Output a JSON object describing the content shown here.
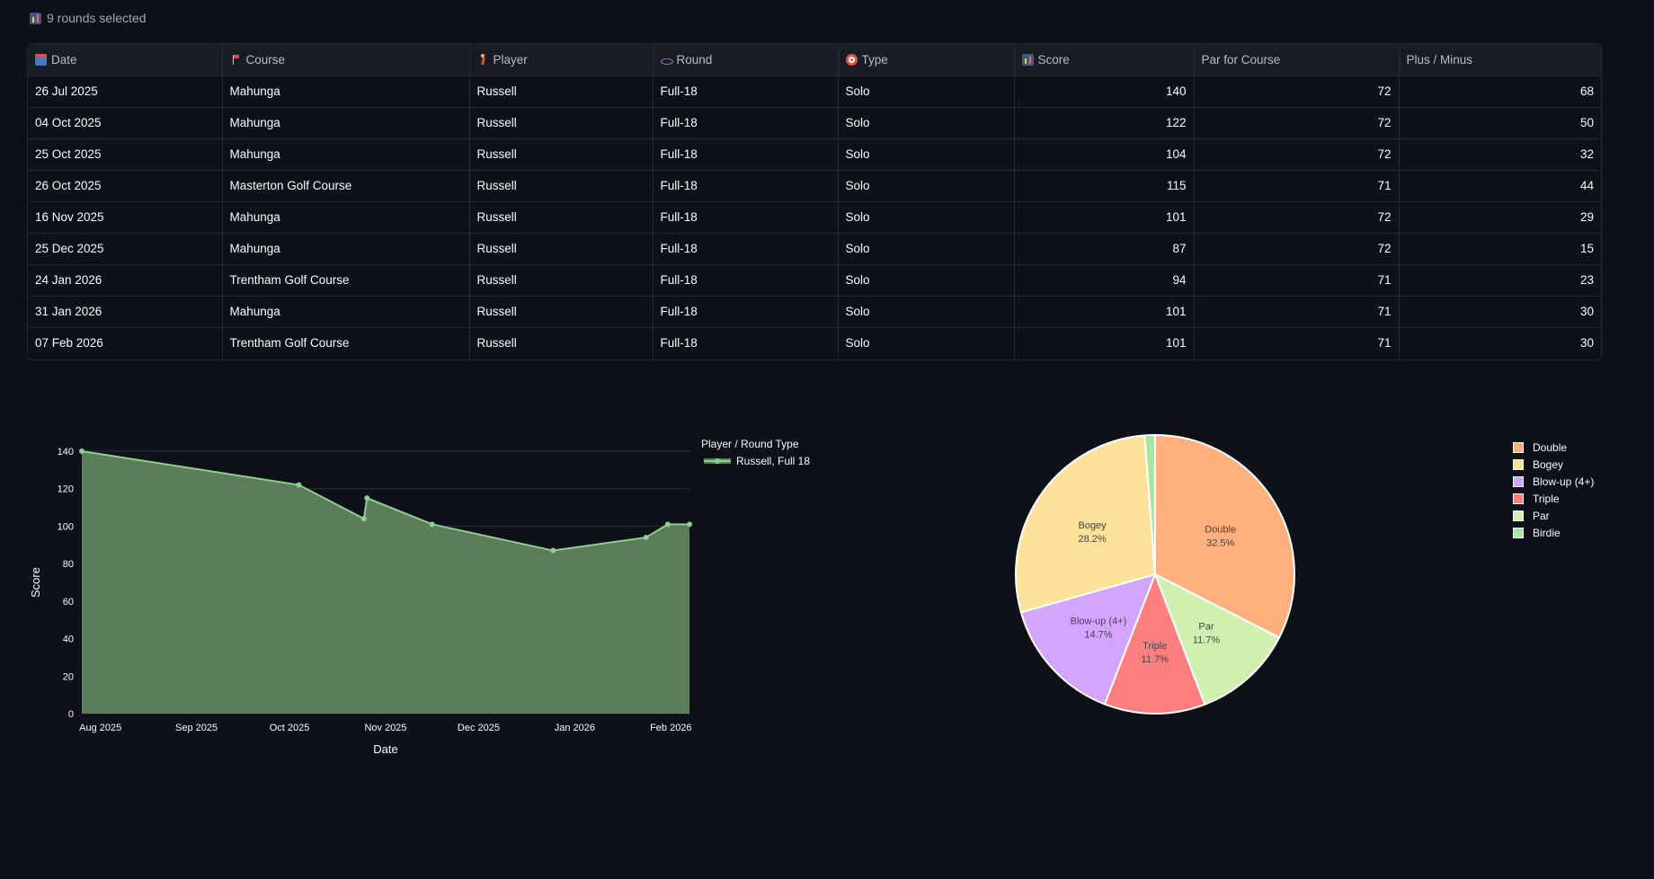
{
  "selection": {
    "text": "9 rounds selected",
    "icon": "bar-chart-icon"
  },
  "table": {
    "columns": [
      {
        "key": "date",
        "label": "Date",
        "icon": "calendar-icon",
        "align": "left"
      },
      {
        "key": "course",
        "label": "Course",
        "icon": "flag-icon",
        "align": "left"
      },
      {
        "key": "player",
        "label": "Player",
        "icon": "golfer-icon",
        "align": "left"
      },
      {
        "key": "round",
        "label": "Round",
        "icon": "round-icon",
        "align": "left"
      },
      {
        "key": "type",
        "label": "Type",
        "icon": "target-icon",
        "align": "left"
      },
      {
        "key": "score",
        "label": "Score",
        "icon": "bar-chart-icon",
        "align": "right"
      },
      {
        "key": "par",
        "label": "Par for Course",
        "icon": "",
        "align": "right"
      },
      {
        "key": "plusminus",
        "label": "Plus / Minus",
        "icon": "",
        "align": "right"
      }
    ],
    "rows": [
      {
        "date": "26 Jul 2025",
        "course": "Mahunga",
        "player": "Russell",
        "round": "Full-18",
        "type": "Solo",
        "score": "140",
        "par": "72",
        "plusminus": "68"
      },
      {
        "date": "04 Oct 2025",
        "course": "Mahunga",
        "player": "Russell",
        "round": "Full-18",
        "type": "Solo",
        "score": "122",
        "par": "72",
        "plusminus": "50"
      },
      {
        "date": "25 Oct 2025",
        "course": "Mahunga",
        "player": "Russell",
        "round": "Full-18",
        "type": "Solo",
        "score": "104",
        "par": "72",
        "plusminus": "32"
      },
      {
        "date": "26 Oct 2025",
        "course": "Masterton Golf Course",
        "player": "Russell",
        "round": "Full-18",
        "type": "Solo",
        "score": "115",
        "par": "71",
        "plusminus": "44"
      },
      {
        "date": "16 Nov 2025",
        "course": "Mahunga",
        "player": "Russell",
        "round": "Full-18",
        "type": "Solo",
        "score": "101",
        "par": "72",
        "plusminus": "29"
      },
      {
        "date": "25 Dec 2025",
        "course": "Mahunga",
        "player": "Russell",
        "round": "Full-18",
        "type": "Solo",
        "score": "87",
        "par": "72",
        "plusminus": "15"
      },
      {
        "date": "24 Jan 2026",
        "course": "Trentham Golf Course",
        "player": "Russell",
        "round": "Full-18",
        "type": "Solo",
        "score": "94",
        "par": "71",
        "plusminus": "23"
      },
      {
        "date": "31 Jan 2026",
        "course": "Mahunga",
        "player": "Russell",
        "round": "Full-18",
        "type": "Solo",
        "score": "101",
        "par": "71",
        "plusminus": "30"
      },
      {
        "date": "07 Feb 2026",
        "course": "Trentham Golf Course",
        "player": "Russell",
        "round": "Full-18",
        "type": "Solo",
        "score": "101",
        "par": "71",
        "plusminus": "30"
      }
    ]
  },
  "chart_data": [
    {
      "type": "area",
      "xlabel": "Date",
      "ylabel": "Score",
      "ylim": [
        0,
        140
      ],
      "yticks": [
        0,
        20,
        40,
        60,
        80,
        100,
        120,
        140
      ],
      "xticks": [
        {
          "date": "2025-08-01",
          "label": "Aug 2025"
        },
        {
          "date": "2025-09-01",
          "label": "Sep 2025"
        },
        {
          "date": "2025-10-01",
          "label": "Oct 2025"
        },
        {
          "date": "2025-11-01",
          "label": "Nov 2025"
        },
        {
          "date": "2025-12-01",
          "label": "Dec 2025"
        },
        {
          "date": "2026-01-01",
          "label": "Jan 2026"
        },
        {
          "date": "2026-02-01",
          "label": "Feb 2026"
        }
      ],
      "xlim": [
        "2025-07-26",
        "2026-02-07"
      ],
      "legend_title": "Player / Round Type",
      "legend_position": "top-right",
      "grid": true,
      "series": [
        {
          "name": "Russell, Full 18",
          "color": "#8fcf8f",
          "fill": "#5b7d5a",
          "x": [
            "2025-07-26",
            "2025-10-04",
            "2025-10-25",
            "2025-10-26",
            "2025-11-16",
            "2025-12-25",
            "2026-01-24",
            "2026-01-31",
            "2026-02-07"
          ],
          "y": [
            140,
            122,
            104,
            115,
            101,
            87,
            94,
            101,
            101
          ]
        }
      ]
    },
    {
      "type": "pie",
      "legend_position": "top-right",
      "slices": [
        {
          "label": "Double",
          "value": 32.5,
          "text": "32.5%",
          "color": "#ffb07c"
        },
        {
          "label": "Par",
          "value": 11.7,
          "text": "11.7%",
          "color": "#d0f0b0"
        },
        {
          "label": "Triple",
          "value": 11.7,
          "text": "11.7%",
          "color": "#ff7f7f"
        },
        {
          "label": "Blow-up (4+)",
          "value": 14.7,
          "text": "14.7%",
          "color": "#d4a5ff"
        },
        {
          "label": "Bogey",
          "value": 28.2,
          "text": "28.2%",
          "color": "#ffe29a"
        },
        {
          "label": "Birdie",
          "value": 1.2,
          "text": "",
          "color": "#a8e6a3"
        }
      ],
      "legend": [
        "Double",
        "Bogey",
        "Blow-up (4+)",
        "Triple",
        "Par",
        "Birdie"
      ]
    }
  ]
}
